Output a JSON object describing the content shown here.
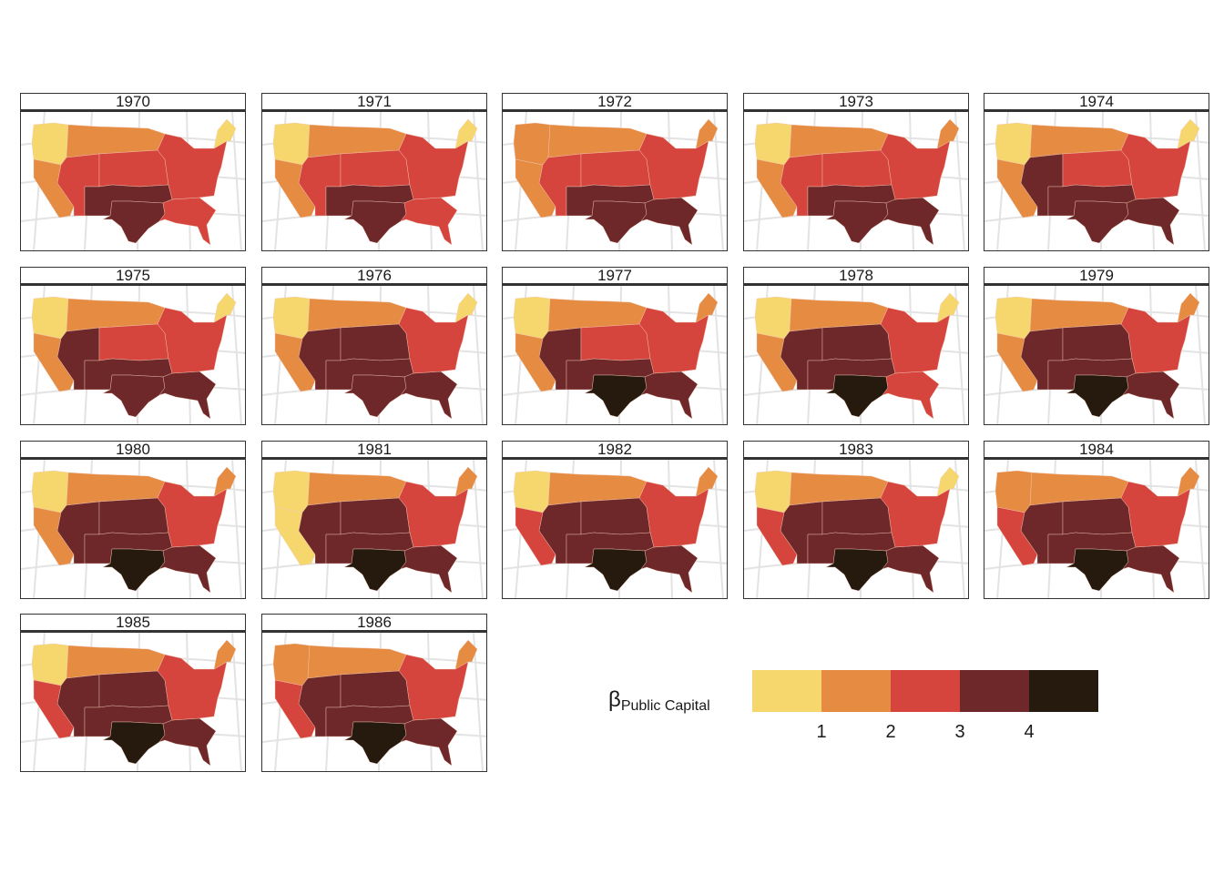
{
  "palette": {
    "1": "#F5D76E",
    "2": "#E58B42",
    "3": "#D6453D",
    "4": "#6E2829",
    "5": "#261A0E"
  },
  "regions": [
    "pacific_nw",
    "california",
    "northern_plains",
    "mountain_south",
    "central",
    "southern_plains",
    "texas",
    "deep_south",
    "midwest_east",
    "new_england"
  ],
  "panels": [
    {
      "label": "1970",
      "classes": {
        "pacific_nw": 1,
        "california": 2,
        "northern_plains": 2,
        "mountain_south": 3,
        "central": 3,
        "southern_plains": 4,
        "texas": 4,
        "deep_south": 3,
        "midwest_east": 3,
        "new_england": 1
      }
    },
    {
      "label": "1971",
      "classes": {
        "pacific_nw": 1,
        "california": 2,
        "northern_plains": 2,
        "mountain_south": 3,
        "central": 3,
        "southern_plains": 4,
        "texas": 4,
        "deep_south": 3,
        "midwest_east": 3,
        "new_england": 1
      }
    },
    {
      "label": "1972",
      "classes": {
        "pacific_nw": 2,
        "california": 2,
        "northern_plains": 2,
        "mountain_south": 3,
        "central": 3,
        "southern_plains": 4,
        "texas": 4,
        "deep_south": 4,
        "midwest_east": 3,
        "new_england": 2
      }
    },
    {
      "label": "1973",
      "classes": {
        "pacific_nw": 1,
        "california": 2,
        "northern_plains": 2,
        "mountain_south": 3,
        "central": 3,
        "southern_plains": 4,
        "texas": 4,
        "deep_south": 4,
        "midwest_east": 3,
        "new_england": 2
      }
    },
    {
      "label": "1974",
      "classes": {
        "pacific_nw": 1,
        "california": 2,
        "northern_plains": 2,
        "mountain_south": 4,
        "central": 3,
        "southern_plains": 4,
        "texas": 4,
        "deep_south": 4,
        "midwest_east": 3,
        "new_england": 1
      }
    },
    {
      "label": "1975",
      "classes": {
        "pacific_nw": 1,
        "california": 2,
        "northern_plains": 2,
        "mountain_south": 4,
        "central": 3,
        "southern_plains": 4,
        "texas": 4,
        "deep_south": 4,
        "midwest_east": 3,
        "new_england": 1
      }
    },
    {
      "label": "1976",
      "classes": {
        "pacific_nw": 1,
        "california": 2,
        "northern_plains": 2,
        "mountain_south": 4,
        "central": 4,
        "southern_plains": 4,
        "texas": 4,
        "deep_south": 4,
        "midwest_east": 3,
        "new_england": 1
      }
    },
    {
      "label": "1977",
      "classes": {
        "pacific_nw": 1,
        "california": 2,
        "northern_plains": 2,
        "mountain_south": 4,
        "central": 3,
        "southern_plains": 4,
        "texas": 5,
        "deep_south": 4,
        "midwest_east": 3,
        "new_england": 2
      }
    },
    {
      "label": "1978",
      "classes": {
        "pacific_nw": 1,
        "california": 2,
        "northern_plains": 2,
        "mountain_south": 4,
        "central": 4,
        "southern_plains": 4,
        "texas": 5,
        "deep_south": 3,
        "midwest_east": 3,
        "new_england": 1
      }
    },
    {
      "label": "1979",
      "classes": {
        "pacific_nw": 1,
        "california": 2,
        "northern_plains": 2,
        "mountain_south": 4,
        "central": 4,
        "southern_plains": 4,
        "texas": 5,
        "deep_south": 4,
        "midwest_east": 3,
        "new_england": 2
      }
    },
    {
      "label": "1980",
      "classes": {
        "pacific_nw": 1,
        "california": 2,
        "northern_plains": 2,
        "mountain_south": 4,
        "central": 4,
        "southern_plains": 4,
        "texas": 5,
        "deep_south": 4,
        "midwest_east": 3,
        "new_england": 2
      }
    },
    {
      "label": "1981",
      "classes": {
        "pacific_nw": 1,
        "california": 1,
        "northern_plains": 2,
        "mountain_south": 4,
        "central": 4,
        "southern_plains": 4,
        "texas": 5,
        "deep_south": 4,
        "midwest_east": 3,
        "new_england": 2
      }
    },
    {
      "label": "1982",
      "classes": {
        "pacific_nw": 1,
        "california": 3,
        "northern_plains": 2,
        "mountain_south": 4,
        "central": 4,
        "southern_plains": 4,
        "texas": 5,
        "deep_south": 4,
        "midwest_east": 3,
        "new_england": 2
      }
    },
    {
      "label": "1983",
      "classes": {
        "pacific_nw": 1,
        "california": 3,
        "northern_plains": 2,
        "mountain_south": 4,
        "central": 4,
        "southern_plains": 4,
        "texas": 5,
        "deep_south": 4,
        "midwest_east": 3,
        "new_england": 1
      }
    },
    {
      "label": "1984",
      "classes": {
        "pacific_nw": 2,
        "california": 3,
        "northern_plains": 2,
        "mountain_south": 4,
        "central": 4,
        "southern_plains": 4,
        "texas": 5,
        "deep_south": 4,
        "midwest_east": 3,
        "new_england": 2
      }
    },
    {
      "label": "1985",
      "classes": {
        "pacific_nw": 1,
        "california": 3,
        "northern_plains": 2,
        "mountain_south": 4,
        "central": 4,
        "southern_plains": 4,
        "texas": 5,
        "deep_south": 4,
        "midwest_east": 3,
        "new_england": 2
      }
    },
    {
      "label": "1986",
      "classes": {
        "pacific_nw": 2,
        "california": 3,
        "northern_plains": 2,
        "mountain_south": 4,
        "central": 4,
        "southern_plains": 4,
        "texas": 5,
        "deep_south": 4,
        "midwest_east": 3,
        "new_england": 2
      }
    }
  ],
  "legend": {
    "title_symbol": "β",
    "title_subscript": "Public Capital",
    "breaks": [
      "1",
      "2",
      "3",
      "4"
    ],
    "class_order": [
      "1",
      "2",
      "3",
      "4",
      "5"
    ]
  }
}
